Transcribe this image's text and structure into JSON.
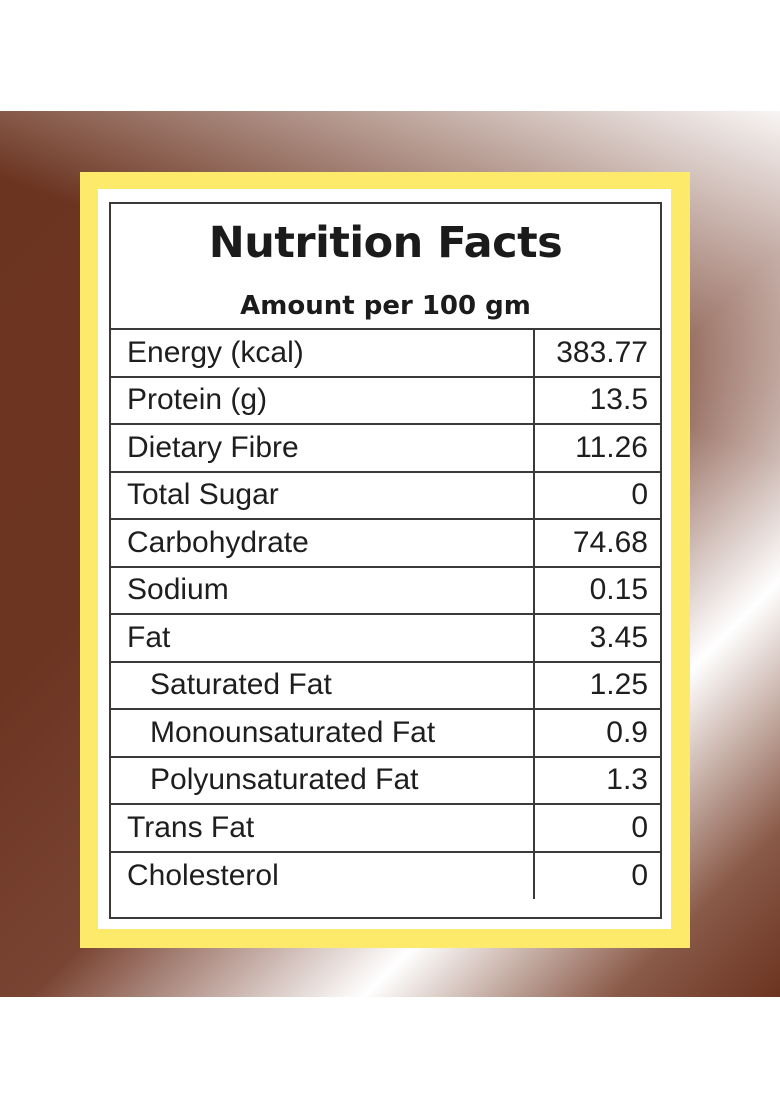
{
  "label": {
    "title": "Nutrition Facts",
    "subtitle": "Amount per 100 gm",
    "rows": [
      {
        "name": "Energy (kcal)",
        "value": "383.77",
        "indent": false
      },
      {
        "name": "Protein (g)",
        "value": "13.5",
        "indent": false
      },
      {
        "name": "Dietary Fibre",
        "value": "11.26",
        "indent": false
      },
      {
        "name": "Total Sugar",
        "value": "0",
        "indent": false
      },
      {
        "name": "Carbohydrate",
        "value": "74.68",
        "indent": false
      },
      {
        "name": "Sodium",
        "value": "0.15",
        "indent": false
      },
      {
        "name": "Fat",
        "value": "3.45",
        "indent": false
      },
      {
        "name": "Saturated Fat",
        "value": "1.25",
        "indent": true
      },
      {
        "name": "Monounsaturated Fat",
        "value": "0.9",
        "indent": true
      },
      {
        "name": "Polyunsaturated Fat",
        "value": "1.3",
        "indent": true
      },
      {
        "name": "Trans Fat",
        "value": "0",
        "indent": false
      },
      {
        "name": "Cholesterol",
        "value": "0",
        "indent": false
      }
    ]
  },
  "colors": {
    "frame": "#fde96a",
    "background": "#6b3420",
    "border": "#3a3a3a"
  }
}
